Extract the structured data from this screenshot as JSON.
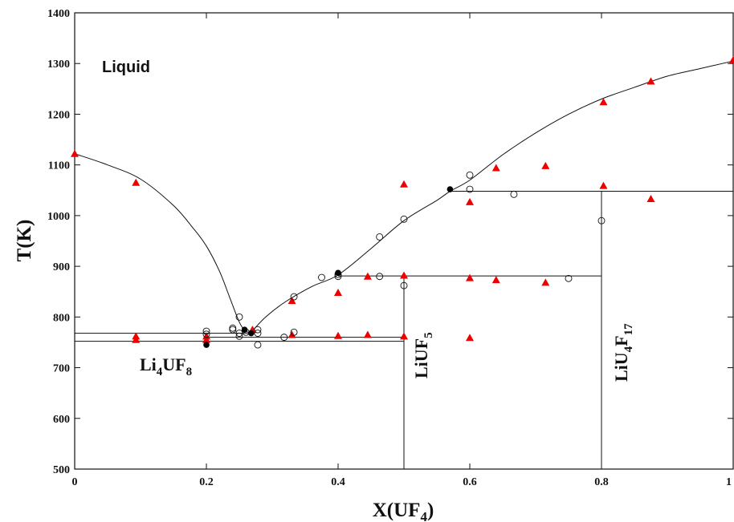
{
  "chart_data": {
    "type": "scatter",
    "xlabel": {
      "main": "X(UF",
      "sub": "4",
      "tail": ")"
    },
    "ylabel": "T(K)",
    "xlim": [
      0,
      1
    ],
    "ylim": [
      500,
      1400
    ],
    "xticks": [
      0,
      0.2,
      0.4,
      0.6,
      0.8,
      1
    ],
    "xtick_labels": [
      "0",
      "0.2",
      "0.4",
      "0.6",
      "0.8",
      "1"
    ],
    "yticks": [
      500,
      600,
      700,
      800,
      900,
      1000,
      1100,
      1200,
      1300,
      1400
    ],
    "ytick_labels": [
      "500",
      "600",
      "700",
      "800",
      "900",
      "1000",
      "1100",
      "1200",
      "1300",
      "1400"
    ],
    "annotations": {
      "liquid": "Liquid",
      "li4uf8": {
        "a": "Li",
        "b": "4",
        "c": "UF",
        "d": "8"
      },
      "liuf5": {
        "a": "LiUF",
        "b": "5"
      },
      "liu4f17": {
        "a": "LiU",
        "b": "4",
        "c": "F",
        "d": "17"
      }
    },
    "liquidus_curves": [
      {
        "points": [
          [
            0,
            1122
          ],
          [
            0.05,
            1100
          ],
          [
            0.1,
            1072
          ],
          [
            0.15,
            1020
          ],
          [
            0.18,
            975
          ],
          [
            0.2,
            940
          ],
          [
            0.22,
            890
          ],
          [
            0.235,
            840
          ],
          [
            0.25,
            790
          ],
          [
            0.26,
            772
          ],
          [
            0.268,
            770
          ]
        ]
      },
      {
        "points": [
          [
            0.268,
            770
          ],
          [
            0.29,
            800
          ],
          [
            0.32,
            830
          ],
          [
            0.36,
            860
          ],
          [
            0.4,
            883
          ],
          [
            0.45,
            935
          ],
          [
            0.5,
            990
          ],
          [
            0.55,
            1030
          ],
          [
            0.57,
            1048
          ],
          [
            0.6,
            1070
          ],
          [
            0.65,
            1120
          ],
          [
            0.7,
            1163
          ],
          [
            0.75,
            1200
          ],
          [
            0.8,
            1230
          ],
          [
            0.85,
            1253
          ],
          [
            0.9,
            1275
          ],
          [
            0.95,
            1290
          ],
          [
            1,
            1305
          ]
        ]
      }
    ],
    "phase_lines": [
      {
        "points": [
          [
            0,
            768
          ],
          [
            0.268,
            768
          ]
        ]
      },
      {
        "points": [
          [
            0,
            752
          ],
          [
            0.5,
            752
          ]
        ]
      },
      {
        "points": [
          [
            0.2,
            760
          ],
          [
            0.5,
            760
          ]
        ]
      },
      {
        "points": [
          [
            0.4,
            881
          ],
          [
            0.8,
            881
          ]
        ]
      },
      {
        "points": [
          [
            0.57,
            1048
          ],
          [
            1,
            1048
          ]
        ]
      },
      {
        "points": [
          [
            0.5,
            500
          ],
          [
            0.5,
            881
          ]
        ]
      },
      {
        "points": [
          [
            0.8,
            500
          ],
          [
            0.8,
            1048
          ]
        ]
      }
    ],
    "series": [
      {
        "marker": "triangle",
        "color": "#ee0000",
        "points": [
          [
            0,
            1122
          ],
          [
            0.093,
            1065
          ],
          [
            0.093,
            762
          ],
          [
            0.093,
            755
          ],
          [
            0.2,
            762
          ],
          [
            0.2,
            755
          ],
          [
            0.27,
            775
          ],
          [
            0.33,
            832
          ],
          [
            0.33,
            765
          ],
          [
            0.4,
            848
          ],
          [
            0.4,
            763
          ],
          [
            0.445,
            880
          ],
          [
            0.445,
            765
          ],
          [
            0.5,
            1062
          ],
          [
            0.5,
            882
          ],
          [
            0.5,
            762
          ],
          [
            0.6,
            1027
          ],
          [
            0.6,
            877
          ],
          [
            0.6,
            759
          ],
          [
            0.64,
            1094
          ],
          [
            0.64,
            873
          ],
          [
            0.715,
            1098
          ],
          [
            0.715,
            868
          ],
          [
            0.803,
            1224
          ],
          [
            0.803,
            1059
          ],
          [
            0.875,
            1265
          ],
          [
            0.875,
            1033
          ],
          [
            1,
            1307
          ]
        ]
      },
      {
        "marker": "open-circle",
        "color": "#111111",
        "points": [
          [
            0.2,
            772
          ],
          [
            0.2,
            766
          ],
          [
            0.24,
            778
          ],
          [
            0.24,
            775
          ],
          [
            0.25,
            800
          ],
          [
            0.25,
            768
          ],
          [
            0.25,
            762
          ],
          [
            0.26,
            770
          ],
          [
            0.278,
            775
          ],
          [
            0.278,
            768
          ],
          [
            0.278,
            745
          ],
          [
            0.318,
            760
          ],
          [
            0.333,
            840
          ],
          [
            0.333,
            770
          ],
          [
            0.375,
            878
          ],
          [
            0.4,
            884
          ],
          [
            0.4,
            880
          ],
          [
            0.463,
            958
          ],
          [
            0.463,
            880
          ],
          [
            0.5,
            993
          ],
          [
            0.5,
            862
          ],
          [
            0.6,
            1080
          ],
          [
            0.6,
            1052
          ],
          [
            0.667,
            1042
          ],
          [
            0.75,
            876
          ],
          [
            0.8,
            990
          ]
        ]
      },
      {
        "marker": "filled-circle",
        "color": "#000000",
        "points": [
          [
            0.2,
            745
          ],
          [
            0.258,
            775
          ],
          [
            0.268,
            768
          ],
          [
            0.4,
            887
          ],
          [
            0.57,
            1052
          ]
        ]
      }
    ]
  }
}
